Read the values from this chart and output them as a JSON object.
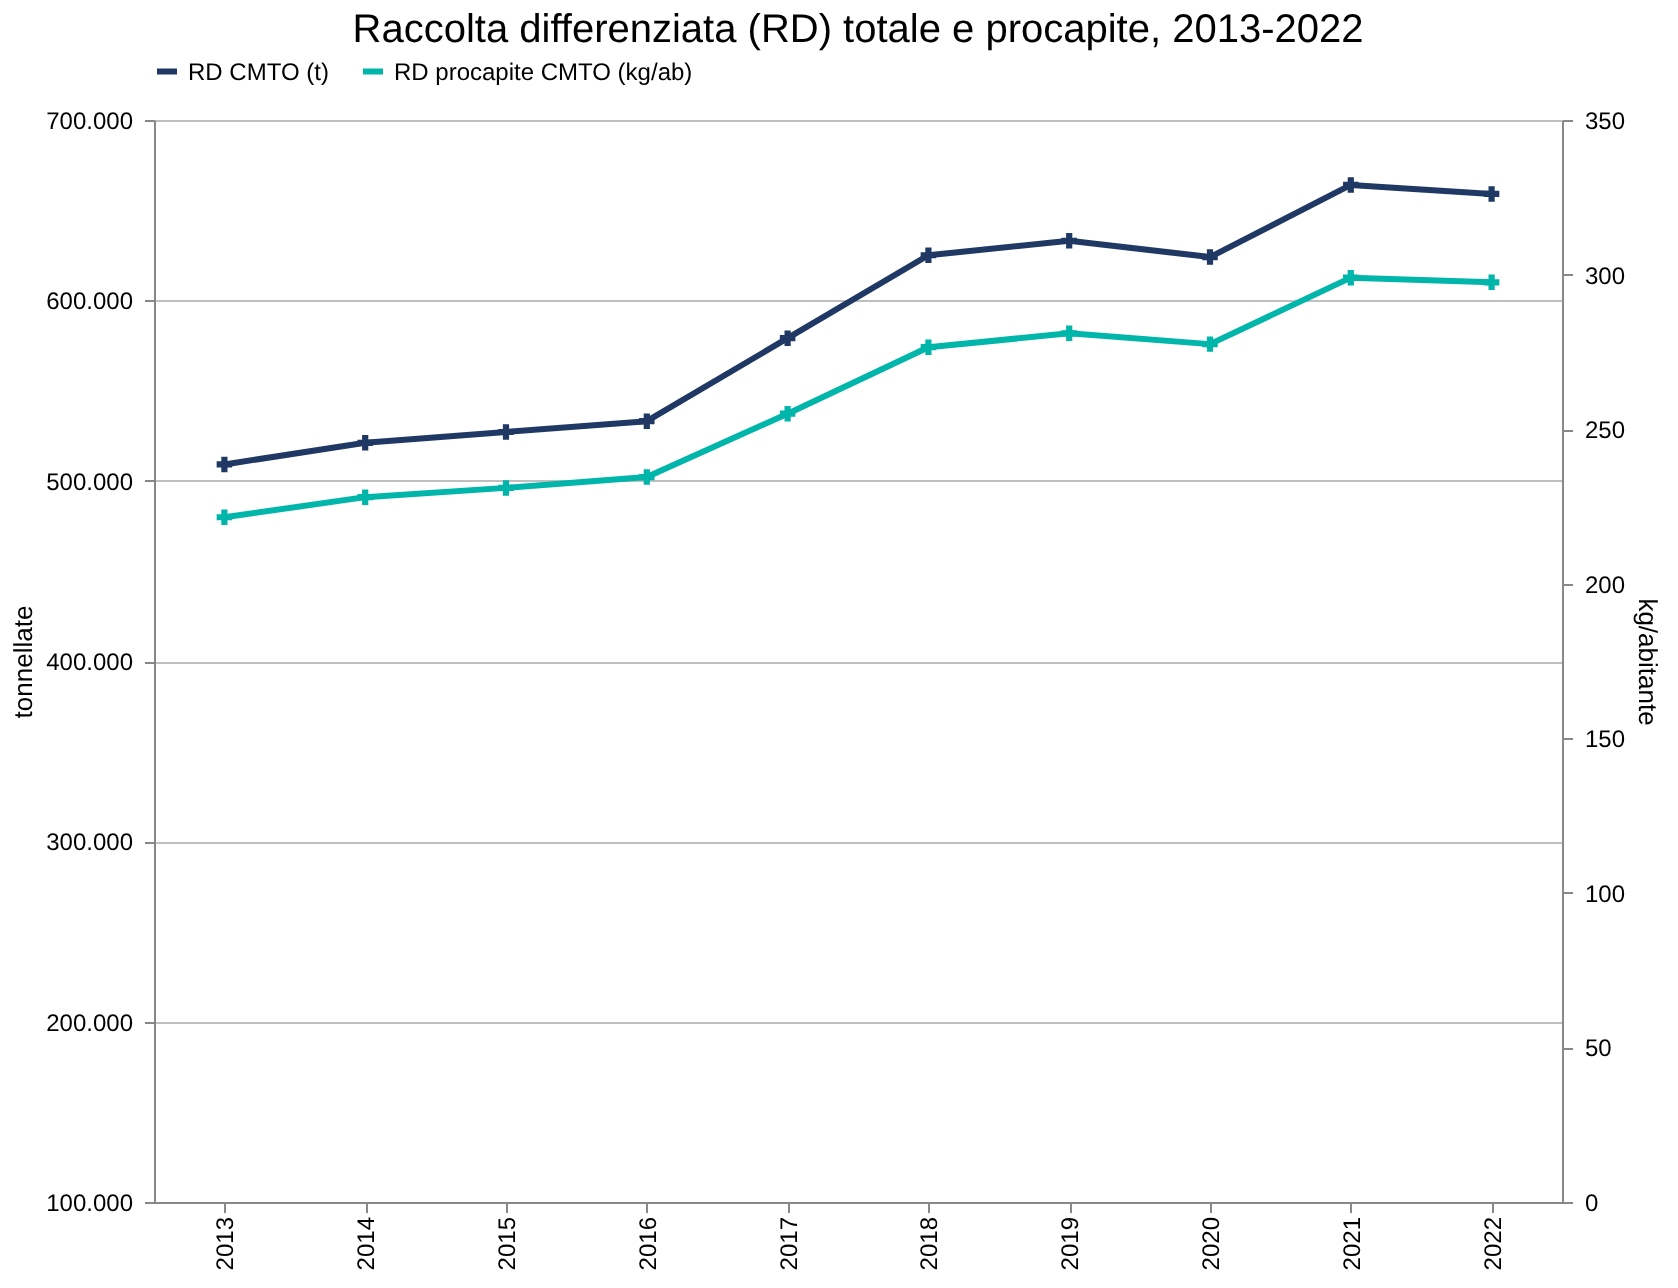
{
  "chart_data": {
    "type": "line",
    "title": "Raccolta differenziata (RD) totale e procapite, 2013-2022",
    "ylabel": "tonnellate",
    "y2label": "kg/abitante",
    "categories": [
      "2013",
      "2014",
      "2015",
      "2016",
      "2017",
      "2018",
      "2019",
      "2020",
      "2021",
      "2022"
    ],
    "series": [
      {
        "name": "RD CMTO (t)",
        "color": "#203864",
        "values": [
          509000,
          521000,
          527000,
          533000,
          579000,
          625000,
          633000,
          624000,
          664000,
          659000
        ]
      },
      {
        "name": "RD procapite CMTO (kg/ab)",
        "color": "#00b5aa",
        "axis": "y2",
        "values": [
          221.5,
          228,
          231,
          234.5,
          255,
          276.5,
          281,
          277.5,
          299,
          297.5
        ]
      }
    ],
    "ylim": [
      100000,
      700000
    ],
    "yticks": [
      {
        "value": 100000,
        "label": "100.000"
      },
      {
        "value": 200000,
        "label": "200.000"
      },
      {
        "value": 300000,
        "label": "300.000"
      },
      {
        "value": 400000,
        "label": "400.000"
      },
      {
        "value": 500000,
        "label": "500.000"
      },
      {
        "value": 600000,
        "label": "600.000"
      },
      {
        "value": 700000,
        "label": "700.000"
      }
    ],
    "y2lim": [
      0,
      350
    ],
    "y2ticks": [
      0,
      50,
      100,
      150,
      200,
      250,
      300,
      350
    ],
    "grid": "y",
    "legend": "top",
    "marker": "cross",
    "line_style": "solid"
  }
}
